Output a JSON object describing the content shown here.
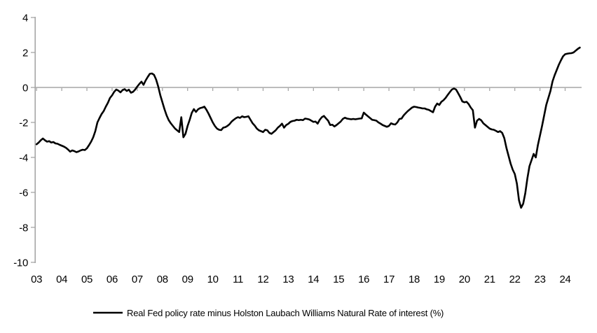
{
  "chart_data": {
    "type": "line",
    "legend_position": "bottom",
    "grid": "zero-line-only",
    "background_color": "#ffffff",
    "axis_color": "#a6a6a6",
    "text_color": "#000000",
    "x_axis": {
      "first_year": 2003,
      "tick_labels": [
        "03",
        "04",
        "05",
        "06",
        "07",
        "08",
        "09",
        "10",
        "11",
        "12",
        "13",
        "14",
        "15",
        "16",
        "17",
        "18",
        "19",
        "20",
        "21",
        "22",
        "23",
        "24"
      ]
    },
    "y_axis": {
      "min": -10,
      "max": 4,
      "ticks": [
        4,
        2,
        0,
        -2,
        -4,
        -6,
        -8,
        -10
      ]
    },
    "series": [
      {
        "name": "Real Fed policy rate minus Holston Laubach Williams Natural Rate of interest (%)",
        "color": "#000000",
        "frequency": "monthly",
        "start_year": 2003,
        "start_month": 1,
        "values": [
          -3.25,
          -3.15,
          -3.02,
          -2.92,
          -3.02,
          -3.1,
          -3.07,
          -3.15,
          -3.12,
          -3.2,
          -3.22,
          -3.28,
          -3.33,
          -3.38,
          -3.45,
          -3.55,
          -3.67,
          -3.6,
          -3.64,
          -3.7,
          -3.66,
          -3.6,
          -3.56,
          -3.58,
          -3.48,
          -3.3,
          -3.1,
          -2.85,
          -2.5,
          -2.0,
          -1.75,
          -1.52,
          -1.35,
          -1.1,
          -0.88,
          -0.6,
          -0.45,
          -0.25,
          -0.12,
          -0.18,
          -0.28,
          -0.15,
          -0.1,
          -0.2,
          -0.13,
          -0.3,
          -0.25,
          -0.12,
          0.05,
          0.2,
          0.33,
          0.15,
          0.4,
          0.6,
          0.78,
          0.8,
          0.72,
          0.45,
          0.05,
          -0.45,
          -0.85,
          -1.25,
          -1.6,
          -1.87,
          -2.05,
          -2.2,
          -2.35,
          -2.45,
          -2.55,
          -1.7,
          -2.85,
          -2.65,
          -2.2,
          -1.85,
          -1.45,
          -1.24,
          -1.4,
          -1.25,
          -1.18,
          -1.15,
          -1.1,
          -1.28,
          -1.5,
          -1.75,
          -2.0,
          -2.2,
          -2.35,
          -2.42,
          -2.44,
          -2.3,
          -2.27,
          -2.2,
          -2.1,
          -1.95,
          -1.85,
          -1.76,
          -1.7,
          -1.74,
          -1.65,
          -1.7,
          -1.68,
          -1.65,
          -1.85,
          -2.05,
          -2.18,
          -2.35,
          -2.45,
          -2.5,
          -2.55,
          -2.42,
          -2.45,
          -2.6,
          -2.65,
          -2.55,
          -2.45,
          -2.3,
          -2.2,
          -2.07,
          -2.3,
          -2.15,
          -2.08,
          -1.97,
          -1.92,
          -1.9,
          -1.85,
          -1.87,
          -1.85,
          -1.87,
          -1.78,
          -1.8,
          -1.83,
          -1.9,
          -1.97,
          -1.95,
          -2.07,
          -1.85,
          -1.7,
          -1.63,
          -1.77,
          -1.9,
          -2.15,
          -2.13,
          -2.23,
          -2.15,
          -2.05,
          -1.95,
          -1.8,
          -1.73,
          -1.78,
          -1.8,
          -1.82,
          -1.8,
          -1.82,
          -1.8,
          -1.78,
          -1.77,
          -1.44,
          -1.55,
          -1.65,
          -1.75,
          -1.85,
          -1.87,
          -1.9,
          -2.0,
          -2.07,
          -2.15,
          -2.2,
          -2.25,
          -2.2,
          -2.05,
          -2.1,
          -2.12,
          -2.0,
          -1.8,
          -1.78,
          -1.6,
          -1.47,
          -1.35,
          -1.25,
          -1.15,
          -1.1,
          -1.12,
          -1.15,
          -1.17,
          -1.2,
          -1.2,
          -1.25,
          -1.28,
          -1.35,
          -1.42,
          -1.1,
          -0.92,
          -1.0,
          -0.82,
          -0.73,
          -0.6,
          -0.43,
          -0.27,
          -0.12,
          -0.06,
          -0.12,
          -0.33,
          -0.55,
          -0.8,
          -0.85,
          -0.82,
          -0.95,
          -1.15,
          -1.3,
          -2.3,
          -1.9,
          -1.8,
          -1.88,
          -2.05,
          -2.15,
          -2.25,
          -2.35,
          -2.4,
          -2.42,
          -2.48,
          -2.55,
          -2.5,
          -2.6,
          -2.9,
          -3.45,
          -3.9,
          -4.35,
          -4.7,
          -4.95,
          -5.5,
          -6.45,
          -6.88,
          -6.65,
          -6.05,
          -5.2,
          -4.5,
          -4.15,
          -3.8,
          -4.0,
          -3.3,
          -2.75,
          -2.2,
          -1.6,
          -1.0,
          -0.6,
          -0.2,
          0.35,
          0.7,
          1.0,
          1.3,
          1.55,
          1.78,
          1.9,
          1.93,
          1.95,
          1.96,
          2.0,
          2.1,
          2.2,
          2.28
        ]
      }
    ],
    "legend": {
      "label": "Real Fed policy rate minus Holston Laubach Williams Natural Rate of interest (%)"
    }
  }
}
